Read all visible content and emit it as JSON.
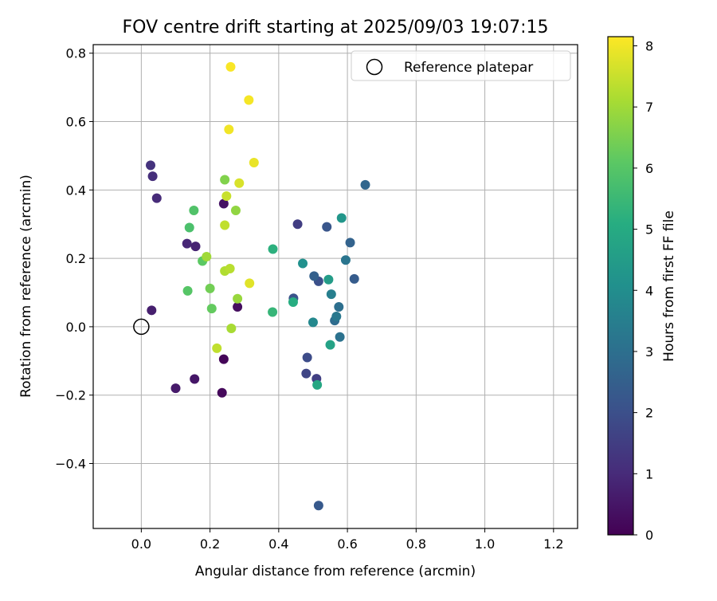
{
  "chart_data": {
    "type": "scatter",
    "title": "FOV centre drift starting at 2025/09/03 19:07:15",
    "xlabel": "Angular distance from reference (arcmin)",
    "ylabel": "Rotation from reference (arcmin)",
    "xlim": [
      -0.14,
      1.27
    ],
    "ylim": [
      -0.59,
      0.825
    ],
    "xticks": [
      0.0,
      0.2,
      0.4,
      0.6,
      0.8,
      1.0,
      1.2
    ],
    "xtick_labels": [
      "0.0",
      "0.2",
      "0.4",
      "0.6",
      "0.8",
      "1.0",
      "1.2"
    ],
    "yticks": [
      -0.4,
      -0.2,
      0.0,
      0.2,
      0.4,
      0.6,
      0.8
    ],
    "ytick_labels": [
      "−0.4",
      "−0.2",
      "0.0",
      "0.2",
      "0.4",
      "0.6",
      "0.8"
    ],
    "grid": true,
    "legend": {
      "position": "top-right",
      "entries": [
        "Reference platepar"
      ]
    },
    "reference_point": {
      "x": 0.0,
      "y": 0.0
    },
    "colorbar": {
      "label": "Hours from first FF file",
      "range": [
        0,
        8.15
      ],
      "ticks": [
        0,
        1,
        2,
        3,
        4,
        5,
        6,
        7,
        8
      ],
      "tick_labels": [
        "0",
        "1",
        "2",
        "3",
        "4",
        "5",
        "6",
        "7",
        "8"
      ],
      "colormap": "viridis",
      "colors": [
        "#440154",
        "#472c7a",
        "#3b518b",
        "#2c718e",
        "#21908d",
        "#27ad81",
        "#5cc863",
        "#aadc32",
        "#fde725"
      ]
    },
    "points": [
      {
        "x": 0.24,
        "y": -0.095,
        "hours": 0.1
      },
      {
        "x": 0.235,
        "y": -0.193,
        "hours": 0.2
      },
      {
        "x": 0.28,
        "y": 0.058,
        "hours": 0.3
      },
      {
        "x": 0.24,
        "y": 0.36,
        "hours": 0.4
      },
      {
        "x": 0.155,
        "y": -0.153,
        "hours": 0.5
      },
      {
        "x": 0.1,
        "y": -0.18,
        "hours": 0.6
      },
      {
        "x": 0.03,
        "y": 0.048,
        "hours": 0.7
      },
      {
        "x": 0.158,
        "y": 0.235,
        "hours": 0.8
      },
      {
        "x": 0.133,
        "y": 0.243,
        "hours": 0.9
      },
      {
        "x": 0.045,
        "y": 0.376,
        "hours": 1.0
      },
      {
        "x": 0.033,
        "y": 0.44,
        "hours": 1.1
      },
      {
        "x": 0.027,
        "y": 0.472,
        "hours": 1.2
      },
      {
        "x": 0.455,
        "y": 0.3,
        "hours": 1.5
      },
      {
        "x": 0.51,
        "y": -0.152,
        "hours": 1.55
      },
      {
        "x": 0.48,
        "y": -0.137,
        "hours": 1.7
      },
      {
        "x": 0.483,
        "y": -0.09,
        "hours": 1.9
      },
      {
        "x": 0.516,
        "y": 0.133,
        "hours": 2.0
      },
      {
        "x": 0.443,
        "y": 0.083,
        "hours": 2.1
      },
      {
        "x": 0.54,
        "y": 0.292,
        "hours": 2.2
      },
      {
        "x": 0.516,
        "y": -0.523,
        "hours": 2.3
      },
      {
        "x": 0.62,
        "y": 0.14,
        "hours": 2.4
      },
      {
        "x": 0.503,
        "y": 0.148,
        "hours": 2.5
      },
      {
        "x": 0.608,
        "y": 0.246,
        "hours": 2.6
      },
      {
        "x": 0.652,
        "y": 0.415,
        "hours": 2.7
      },
      {
        "x": 0.563,
        "y": 0.018,
        "hours": 2.9
      },
      {
        "x": 0.575,
        "y": 0.058,
        "hours": 3.0
      },
      {
        "x": 0.578,
        "y": -0.03,
        "hours": 3.1
      },
      {
        "x": 0.595,
        "y": 0.195,
        "hours": 3.2
      },
      {
        "x": 0.568,
        "y": 0.03,
        "hours": 3.3
      },
      {
        "x": 0.553,
        "y": 0.095,
        "hours": 3.5
      },
      {
        "x": 0.5,
        "y": 0.013,
        "hours": 3.8
      },
      {
        "x": 0.47,
        "y": 0.185,
        "hours": 4.1
      },
      {
        "x": 0.583,
        "y": 0.318,
        "hours": 4.3
      },
      {
        "x": 0.545,
        "y": 0.138,
        "hours": 4.5
      },
      {
        "x": 0.55,
        "y": -0.053,
        "hours": 4.7
      },
      {
        "x": 0.512,
        "y": -0.17,
        "hours": 4.9
      },
      {
        "x": 0.442,
        "y": 0.072,
        "hours": 5.1
      },
      {
        "x": 0.383,
        "y": 0.227,
        "hours": 5.2
      },
      {
        "x": 0.382,
        "y": 0.043,
        "hours": 5.4
      },
      {
        "x": 0.14,
        "y": 0.29,
        "hours": 5.8
      },
      {
        "x": 0.153,
        "y": 0.34,
        "hours": 5.9
      },
      {
        "x": 0.135,
        "y": 0.105,
        "hours": 6.0
      },
      {
        "x": 0.178,
        "y": 0.192,
        "hours": 6.1
      },
      {
        "x": 0.205,
        "y": 0.053,
        "hours": 6.2
      },
      {
        "x": 0.2,
        "y": 0.112,
        "hours": 6.4
      },
      {
        "x": 0.243,
        "y": 0.43,
        "hours": 6.6
      },
      {
        "x": 0.275,
        "y": 0.34,
        "hours": 6.8
      },
      {
        "x": 0.28,
        "y": 0.082,
        "hours": 6.9
      },
      {
        "x": 0.19,
        "y": 0.205,
        "hours": 7.0
      },
      {
        "x": 0.262,
        "y": -0.005,
        "hours": 7.1
      },
      {
        "x": 0.243,
        "y": 0.163,
        "hours": 7.2
      },
      {
        "x": 0.258,
        "y": 0.17,
        "hours": 7.3
      },
      {
        "x": 0.22,
        "y": -0.063,
        "hours": 7.4
      },
      {
        "x": 0.243,
        "y": 0.297,
        "hours": 7.4
      },
      {
        "x": 0.248,
        "y": 0.382,
        "hours": 7.5
      },
      {
        "x": 0.285,
        "y": 0.42,
        "hours": 7.7
      },
      {
        "x": 0.315,
        "y": 0.127,
        "hours": 7.8
      },
      {
        "x": 0.328,
        "y": 0.48,
        "hours": 7.9
      },
      {
        "x": 0.255,
        "y": 0.577,
        "hours": 8.0
      },
      {
        "x": 0.313,
        "y": 0.663,
        "hours": 8.05
      },
      {
        "x": 0.26,
        "y": 0.76,
        "hours": 8.1
      }
    ]
  }
}
